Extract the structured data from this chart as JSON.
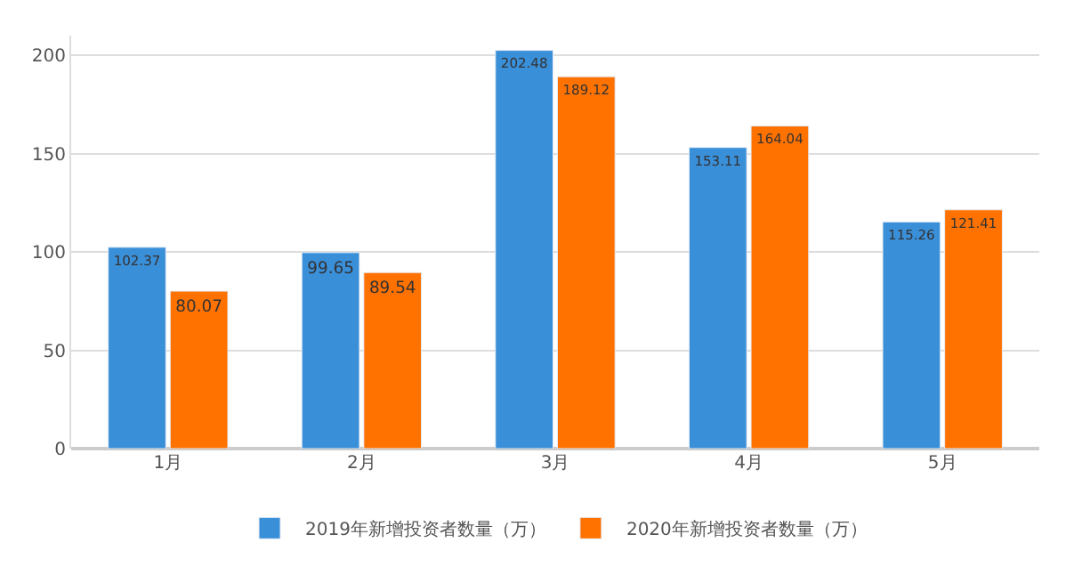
{
  "chart_data": {
    "type": "bar",
    "categories": [
      "1月",
      "2月",
      "3月",
      "4月",
      "5月"
    ],
    "series": [
      {
        "name": "2019年新增投资者数量（万）",
        "color": "#3a8fd9",
        "values": [
          102.37,
          99.65,
          202.48,
          153.11,
          115.26
        ]
      },
      {
        "name": "2020年新增投资者数量（万）",
        "color": "#ff7200",
        "values": [
          80.07,
          89.54,
          189.12,
          164.04,
          121.41
        ]
      }
    ],
    "ylim": [
      0,
      210
    ],
    "yticks": [
      0,
      50,
      100,
      150,
      200
    ],
    "grid": "y",
    "legend": "bottom",
    "data_labels": true
  }
}
